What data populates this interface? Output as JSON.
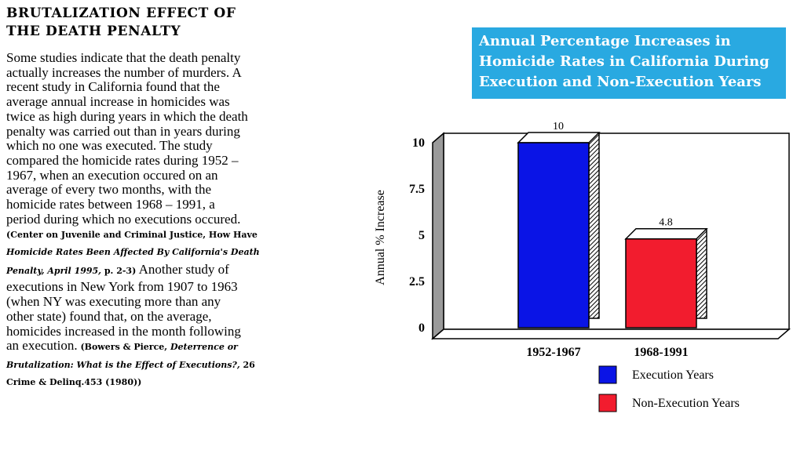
{
  "article": {
    "heading_lines": [
      "BRUTALIZATION EFFECT OF",
      "THE DEATH PENALTY"
    ],
    "lines": [
      "Some studies indicate that the death penalty",
      "actually increases the number of murders.  A",
      "recent study in California found that the",
      "average annual increase in homicides was",
      "twice as high during years in which the death",
      "penalty was carried out than in years during",
      "which no one was executed.  The study",
      "compared the homicide rates during 1952 –",
      "1967, when an execution occured on an",
      "average of every two months, with the",
      "homicide rates between 1968 – 1991, a",
      "period during which no executions occured."
    ],
    "cite1": {
      "line1": "(Center on Juvenile and Criminal Justice, How Have",
      "line2": "Homicide Rates Been Affected By California's Death",
      "line3_italic": "Penalty, April 1995,",
      "line3_rest": " p. 2-3)",
      "after": "  Another study of"
    },
    "lines2": [
      "executions in New York from 1907 to 1963",
      "(when NY was executing more than any",
      "other state) found that, on the average,",
      "homicides increased in the month following"
    ],
    "last_line_start": "an execution.",
    "cite2": {
      "line1_start": " (Bowers & Pierce, ",
      "line1_italic": "Deterrence or",
      "line2_italic": "Brutalization:  What is the Effect of Executions?,",
      "line2_rest": " 26",
      "line3": "Crime & Delinq.453 (1980))"
    }
  },
  "chart_data": {
    "type": "bar",
    "title_lines": [
      "Annual Percentage Increases in",
      "Homicide Rates in California During",
      "Execution and Non-Execution Years"
    ],
    "ylabel": "Annual % Increase",
    "xlabel": "",
    "categories": [
      "1952-1967",
      "1968-1991"
    ],
    "values": [
      10,
      4.8
    ],
    "value_labels": [
      "10",
      "4.8"
    ],
    "colors": [
      "#0a14e6",
      "#f21c2e"
    ],
    "ylim": [
      0,
      10
    ],
    "yticks": [
      0,
      2.5,
      5,
      7.5,
      10
    ],
    "ytick_labels": [
      "0",
      "2.5",
      "5",
      "7.5",
      "10"
    ],
    "legend": [
      {
        "label": "Execution Years",
        "color": "#0a14e6"
      },
      {
        "label": "Non-Execution Years",
        "color": "#f21c2e"
      }
    ],
    "legend_position": "bottom-right",
    "grid": false
  }
}
